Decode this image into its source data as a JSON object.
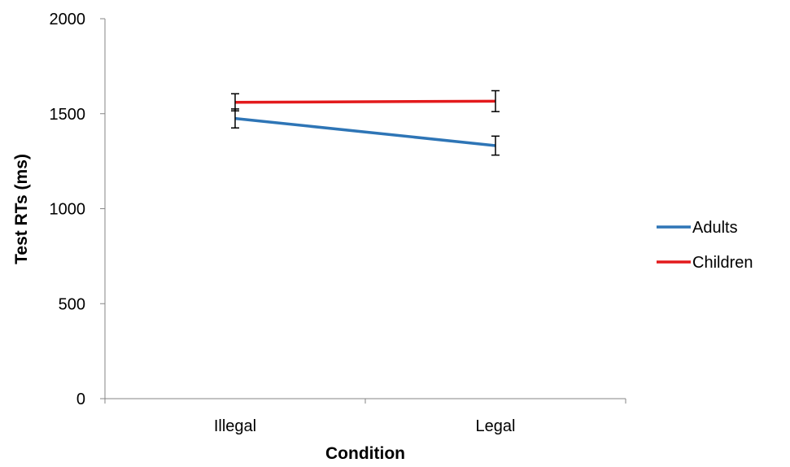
{
  "chart_data": {
    "type": "line",
    "categories": [
      "Illegal",
      "Legal"
    ],
    "series": [
      {
        "name": "Adults",
        "values": [
          1475,
          1332
        ],
        "errors": [
          50,
          50
        ],
        "color": "#2e75b6"
      },
      {
        "name": "Children",
        "values": [
          1560,
          1566
        ],
        "errors": [
          45,
          55
        ],
        "color": "#e31a1c"
      }
    ],
    "xlabel": "Condition",
    "ylabel": "Test RTs (ms)",
    "ylim": [
      0,
      2000
    ],
    "yticks": [
      0,
      500,
      1000,
      1500,
      2000
    ],
    "legend_position": "right",
    "grid": false
  }
}
